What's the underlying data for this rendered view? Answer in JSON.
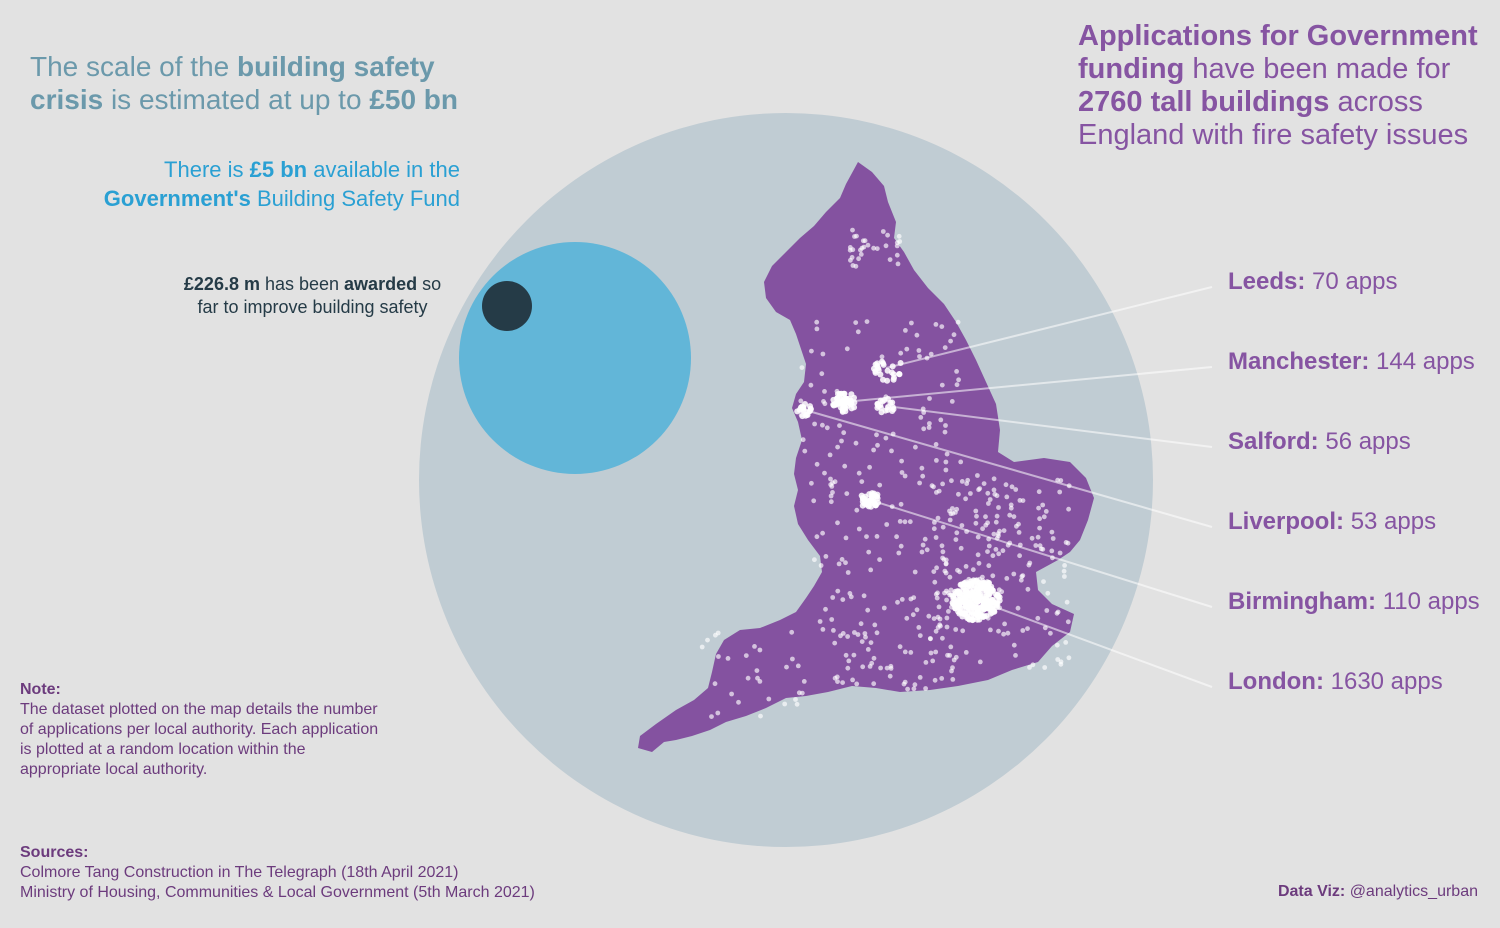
{
  "headline_scale": {
    "p1": "The scale of the ",
    "b1": "building safety crisis",
    "p2": " is estimated at up to ",
    "b2": "£50 bn"
  },
  "fund": {
    "p1": "There is ",
    "b1": "£5 bn",
    "p2": " available in the ",
    "b2": "Government's",
    "p3": " Building Safety Fund"
  },
  "awarded": {
    "b1": "£226.8 m",
    "p1": " has been ",
    "b2": "awarded",
    "p2": " so far to improve building safety"
  },
  "applications": {
    "b1": "Applications for Government funding",
    "p1": " have been made for ",
    "b2": "2760 tall buildings",
    "p2": " across England with fire safety issues"
  },
  "cities": [
    {
      "name": "Leeds:",
      "count": "70 apps"
    },
    {
      "name": "Manchester:",
      "count": "144 apps"
    },
    {
      "name": "Salford:",
      "count": "56 apps"
    },
    {
      "name": "Liverpool:",
      "count": "53 apps"
    },
    {
      "name": "Birmingham:",
      "count": "110 apps"
    },
    {
      "name": "London:",
      "count": "1630 apps"
    }
  ],
  "note": {
    "heading": "Note:",
    "body": "The dataset plotted on the map details the number of applications per local authority. Each application is plotted at a random location within the appropriate local authority."
  },
  "sources": {
    "heading": "Sources:",
    "lines": [
      "Colmore Tang Construction in The Telegraph (18th April 2021)",
      "Ministry of Housing, Communities & Local Government (5th March 2021)"
    ]
  },
  "credit": {
    "label": "Data Viz:",
    "handle": "@analytics_urban"
  },
  "chart_data": {
    "type": "bubble",
    "circles": [
      {
        "label": "Building safety crisis",
        "value_bn": 50
      },
      {
        "label": "Building Safety Fund",
        "value_bn": 5
      },
      {
        "label": "Awarded",
        "value_bn": 0.2268
      }
    ],
    "map_points": {
      "series": [
        {
          "name": "Leeds",
          "value": 70
        },
        {
          "name": "Manchester",
          "value": 144
        },
        {
          "name": "Salford",
          "value": 56
        },
        {
          "name": "Liverpool",
          "value": 53
        },
        {
          "name": "Birmingham",
          "value": 110
        },
        {
          "name": "London",
          "value": 1630
        }
      ],
      "total": 2760
    }
  },
  "colors": {
    "background": "#e2e2e2",
    "crisis_circle": "#c0ccd3",
    "fund_circle": "#62b6d8",
    "awarded_circle": "#253b47",
    "england": "#8452a0",
    "points": "#ffffff",
    "accent_purple": "#8654a2",
    "accent_blue": "#2aa0d3",
    "scale_text": "#6b99ab"
  },
  "icons": []
}
